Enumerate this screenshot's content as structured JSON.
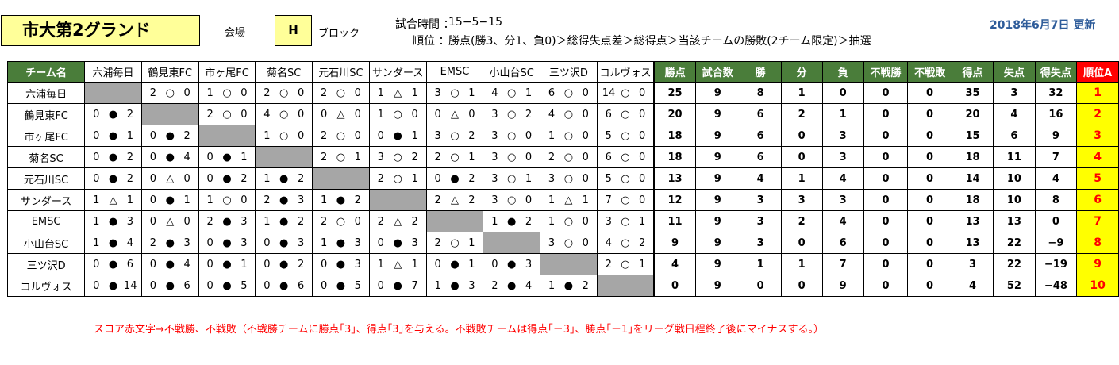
{
  "header": {
    "venue": "市大第2グランド",
    "venue_label": "会場",
    "block": "H",
    "block_label": "ブロック",
    "time_label": "試合時間 ：",
    "time_value": "15−5−15",
    "rank_label": "順位 ：",
    "rank_value": "勝点(勝3、分1、負0)＞総得失点差＞総得点＞当該チームの勝敗(2チーム限定)＞抽選",
    "updated": "2018年6月7日 更新"
  },
  "table": {
    "team_header": "チーム名",
    "stat_headers": [
      "勝点",
      "試合数",
      "勝",
      "分",
      "負",
      "不戦勝",
      "不戦敗",
      "得点",
      "失点",
      "得失点"
    ],
    "rank_header": "順位A",
    "teams": [
      "六浦毎日",
      "鶴見東FC",
      "市ヶ尾FC",
      "菊名SC",
      "元石川SC",
      "サンダース",
      "EMSC",
      "小山台SC",
      "三ツ沢D",
      "コルヴォス"
    ],
    "rows": [
      {
        "team": "六浦毎日",
        "scores": [
          null,
          [
            "2",
            "○",
            "0"
          ],
          [
            "1",
            "○",
            "0"
          ],
          [
            "2",
            "○",
            "0"
          ],
          [
            "2",
            "○",
            "0"
          ],
          [
            "1",
            "△",
            "1"
          ],
          [
            "3",
            "○",
            "1"
          ],
          [
            "4",
            "○",
            "1"
          ],
          [
            "6",
            "○",
            "0"
          ],
          [
            "14",
            "○",
            "0"
          ]
        ],
        "stats": [
          "25",
          "9",
          "8",
          "1",
          "0",
          "0",
          "0",
          "35",
          "3",
          "32"
        ],
        "rank": "1"
      },
      {
        "team": "鶴見東FC",
        "scores": [
          [
            "0",
            "●",
            "2"
          ],
          null,
          [
            "2",
            "○",
            "0"
          ],
          [
            "4",
            "○",
            "0"
          ],
          [
            "0",
            "△",
            "0"
          ],
          [
            "1",
            "○",
            "0"
          ],
          [
            "0",
            "△",
            "0"
          ],
          [
            "3",
            "○",
            "2"
          ],
          [
            "4",
            "○",
            "0"
          ],
          [
            "6",
            "○",
            "0"
          ]
        ],
        "stats": [
          "20",
          "9",
          "6",
          "2",
          "1",
          "0",
          "0",
          "20",
          "4",
          "16"
        ],
        "rank": "2"
      },
      {
        "team": "市ヶ尾FC",
        "scores": [
          [
            "0",
            "●",
            "1"
          ],
          [
            "0",
            "●",
            "2"
          ],
          null,
          [
            "1",
            "○",
            "0"
          ],
          [
            "2",
            "○",
            "0"
          ],
          [
            "0",
            "●",
            "1"
          ],
          [
            "3",
            "○",
            "2"
          ],
          [
            "3",
            "○",
            "0"
          ],
          [
            "1",
            "○",
            "0"
          ],
          [
            "5",
            "○",
            "0"
          ]
        ],
        "stats": [
          "18",
          "9",
          "6",
          "0",
          "3",
          "0",
          "0",
          "15",
          "6",
          "9"
        ],
        "rank": "3"
      },
      {
        "team": "菊名SC",
        "scores": [
          [
            "0",
            "●",
            "2"
          ],
          [
            "0",
            "●",
            "4"
          ],
          [
            "0",
            "●",
            "1"
          ],
          null,
          [
            "2",
            "○",
            "1"
          ],
          [
            "3",
            "○",
            "2"
          ],
          [
            "2",
            "○",
            "1"
          ],
          [
            "3",
            "○",
            "0"
          ],
          [
            "2",
            "○",
            "0"
          ],
          [
            "6",
            "○",
            "0"
          ]
        ],
        "stats": [
          "18",
          "9",
          "6",
          "0",
          "3",
          "0",
          "0",
          "18",
          "11",
          "7"
        ],
        "rank": "4"
      },
      {
        "team": "元石川SC",
        "scores": [
          [
            "0",
            "●",
            "2"
          ],
          [
            "0",
            "△",
            "0"
          ],
          [
            "0",
            "●",
            "2"
          ],
          [
            "1",
            "●",
            "2"
          ],
          null,
          [
            "2",
            "○",
            "1"
          ],
          [
            "0",
            "●",
            "2"
          ],
          [
            "3",
            "○",
            "1"
          ],
          [
            "3",
            "○",
            "0"
          ],
          [
            "5",
            "○",
            "0"
          ]
        ],
        "stats": [
          "13",
          "9",
          "4",
          "1",
          "4",
          "0",
          "0",
          "14",
          "10",
          "4"
        ],
        "rank": "5"
      },
      {
        "team": "サンダース",
        "scores": [
          [
            "1",
            "△",
            "1"
          ],
          [
            "0",
            "●",
            "1"
          ],
          [
            "1",
            "○",
            "0"
          ],
          [
            "2",
            "●",
            "3"
          ],
          [
            "1",
            "●",
            "2"
          ],
          null,
          [
            "2",
            "△",
            "2"
          ],
          [
            "3",
            "○",
            "0"
          ],
          [
            "1",
            "△",
            "1"
          ],
          [
            "7",
            "○",
            "0"
          ]
        ],
        "stats": [
          "12",
          "9",
          "3",
          "3",
          "3",
          "0",
          "0",
          "18",
          "10",
          "8"
        ],
        "rank": "6"
      },
      {
        "team": "EMSC",
        "scores": [
          [
            "1",
            "●",
            "3"
          ],
          [
            "0",
            "△",
            "0"
          ],
          [
            "2",
            "●",
            "3"
          ],
          [
            "1",
            "●",
            "2"
          ],
          [
            "2",
            "○",
            "0"
          ],
          [
            "2",
            "△",
            "2"
          ],
          null,
          [
            "1",
            "●",
            "2"
          ],
          [
            "1",
            "○",
            "0"
          ],
          [
            "3",
            "○",
            "1"
          ]
        ],
        "stats": [
          "11",
          "9",
          "3",
          "2",
          "4",
          "0",
          "0",
          "13",
          "13",
          "0"
        ],
        "rank": "7"
      },
      {
        "team": "小山台SC",
        "scores": [
          [
            "1",
            "●",
            "4"
          ],
          [
            "2",
            "●",
            "3"
          ],
          [
            "0",
            "●",
            "3"
          ],
          [
            "0",
            "●",
            "3"
          ],
          [
            "1",
            "●",
            "3"
          ],
          [
            "0",
            "●",
            "3"
          ],
          [
            "2",
            "○",
            "1"
          ],
          null,
          [
            "3",
            "○",
            "0"
          ],
          [
            "4",
            "○",
            "2"
          ]
        ],
        "stats": [
          "9",
          "9",
          "3",
          "0",
          "6",
          "0",
          "0",
          "13",
          "22",
          "−9"
        ],
        "rank": "8"
      },
      {
        "team": "三ツ沢D",
        "scores": [
          [
            "0",
            "●",
            "6"
          ],
          [
            "0",
            "●",
            "4"
          ],
          [
            "0",
            "●",
            "1"
          ],
          [
            "0",
            "●",
            "2"
          ],
          [
            "0",
            "●",
            "3"
          ],
          [
            "1",
            "△",
            "1"
          ],
          [
            "0",
            "●",
            "1"
          ],
          [
            "0",
            "●",
            "3"
          ],
          null,
          [
            "2",
            "○",
            "1"
          ]
        ],
        "stats": [
          "4",
          "9",
          "1",
          "1",
          "7",
          "0",
          "0",
          "3",
          "22",
          "−19"
        ],
        "rank": "9"
      },
      {
        "team": "コルヴォス",
        "scores": [
          [
            "0",
            "●",
            "14"
          ],
          [
            "0",
            "●",
            "6"
          ],
          [
            "0",
            "●",
            "5"
          ],
          [
            "0",
            "●",
            "6"
          ],
          [
            "0",
            "●",
            "5"
          ],
          [
            "0",
            "●",
            "7"
          ],
          [
            "1",
            "●",
            "3"
          ],
          [
            "2",
            "●",
            "4"
          ],
          [
            "1",
            "●",
            "2"
          ],
          null
        ],
        "stats": [
          "0",
          "9",
          "0",
          "0",
          "9",
          "0",
          "0",
          "4",
          "52",
          "−48"
        ],
        "rank": "10"
      }
    ]
  },
  "note": "スコア赤文字→不戦勝、不戦敗（不戦勝チームに勝点｢3｣、得点｢3｣を与える。不戦敗チームは得点｢－3｣、勝点｢－1｣をリーグ戦日程終了後にマイナスする。）",
  "colors": {
    "header_green": "#4a7d3a",
    "rank_red": "#ff0000",
    "rank_yellow": "#ffff00",
    "venue_yellow": "#ffff99",
    "diagonal_gray": "#a6a6a6",
    "updated_blue": "#2e5c9a"
  }
}
